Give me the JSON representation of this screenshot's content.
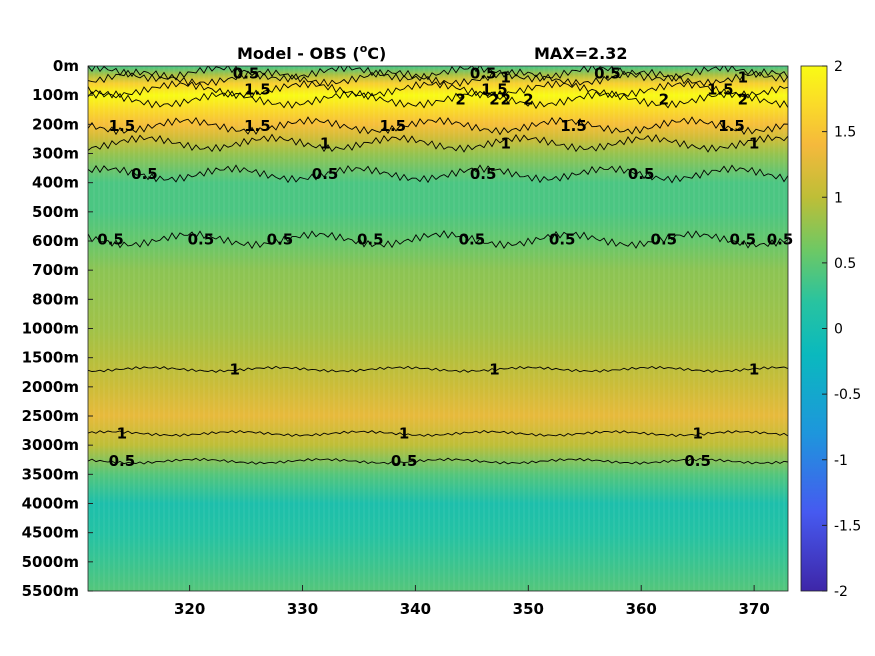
{
  "chart_data": {
    "type": "heatmap",
    "title": "Model - OBS (",
    "title_unit_sup": "o",
    "title_unit": "C)",
    "max_label": "MAX=2.32",
    "y_tick_labels": [
      "0m",
      "100m",
      "200m",
      "300m",
      "400m",
      "500m",
      "600m",
      "700m",
      "800m",
      "1000m",
      "1500m",
      "2000m",
      "2500m",
      "3000m",
      "3500m",
      "4000m",
      "4500m",
      "5000m",
      "5500m"
    ],
    "x_ticks": [
      320,
      330,
      340,
      350,
      360,
      370
    ],
    "x_range": [
      311,
      373
    ],
    "colorbar": {
      "ticks": [
        "2",
        "1.5",
        "1",
        "0.5",
        "0",
        "-0.5",
        "-1",
        "-1.5",
        "-2"
      ],
      "range": [
        -2,
        2
      ],
      "colormap": "parula"
    },
    "depth_profile": [
      {
        "depth_index": 0.0,
        "value": 0.35
      },
      {
        "depth_index": 0.3,
        "value": 0.9
      },
      {
        "depth_index": 0.6,
        "value": 1.6
      },
      {
        "depth_index": 1.0,
        "value": 2.0
      },
      {
        "depth_index": 1.5,
        "value": 1.7
      },
      {
        "depth_index": 2.0,
        "value": 1.45
      },
      {
        "depth_index": 2.5,
        "value": 1.1
      },
      {
        "depth_index": 3.0,
        "value": 0.8
      },
      {
        "depth_index": 4.0,
        "value": 0.4
      },
      {
        "depth_index": 5.0,
        "value": 0.4
      },
      {
        "depth_index": 6.0,
        "value": 0.55
      },
      {
        "depth_index": 7.0,
        "value": 0.75
      },
      {
        "depth_index": 8.0,
        "value": 0.8
      },
      {
        "depth_index": 9.0,
        "value": 0.85
      },
      {
        "depth_index": 10.0,
        "value": 0.95
      },
      {
        "depth_index": 11.0,
        "value": 1.1
      },
      {
        "depth_index": 12.0,
        "value": 1.3
      },
      {
        "depth_index": 13.0,
        "value": 1.0
      },
      {
        "depth_index": 14.0,
        "value": 0.45
      },
      {
        "depth_index": 15.0,
        "value": 0.05
      },
      {
        "depth_index": 16.0,
        "value": 0.15
      },
      {
        "depth_index": 17.0,
        "value": 0.3
      },
      {
        "depth_index": 18.0,
        "value": 0.45
      }
    ],
    "contours": [
      {
        "level": "0.5",
        "depth_index": 0.25,
        "labels_x": [
          325,
          346,
          357
        ]
      },
      {
        "level": "1.5",
        "depth_index": 0.8,
        "labels_x": [
          326,
          347,
          367
        ]
      },
      {
        "level": "1",
        "depth_index": 0.4,
        "labels_x": [
          348,
          369
        ]
      },
      {
        "level": "2",
        "depth_index": 1.15,
        "labels_x": [
          344,
          347,
          348,
          350,
          362,
          369
        ]
      },
      {
        "level": "1.5",
        "depth_index": 2.05,
        "labels_x": [
          314,
          326,
          338,
          354,
          368
        ]
      },
      {
        "level": "1",
        "depth_index": 2.65,
        "labels_x": [
          332,
          348,
          370
        ]
      },
      {
        "level": "0.5",
        "depth_index": 3.7,
        "labels_x": [
          316,
          332,
          346,
          360
        ]
      },
      {
        "level": "0.5",
        "depth_index": 5.95,
        "labels_x": [
          313,
          321,
          328,
          336,
          345,
          353,
          362,
          369,
          373
        ]
      },
      {
        "level": "1",
        "depth_index": 10.4,
        "labels_x": [
          324,
          347,
          370
        ]
      },
      {
        "level": "1",
        "depth_index": 12.6,
        "labels_x": [
          314,
          339,
          365
        ]
      },
      {
        "level": "0.5",
        "depth_index": 13.55,
        "labels_x": [
          314,
          339,
          365
        ]
      }
    ]
  }
}
